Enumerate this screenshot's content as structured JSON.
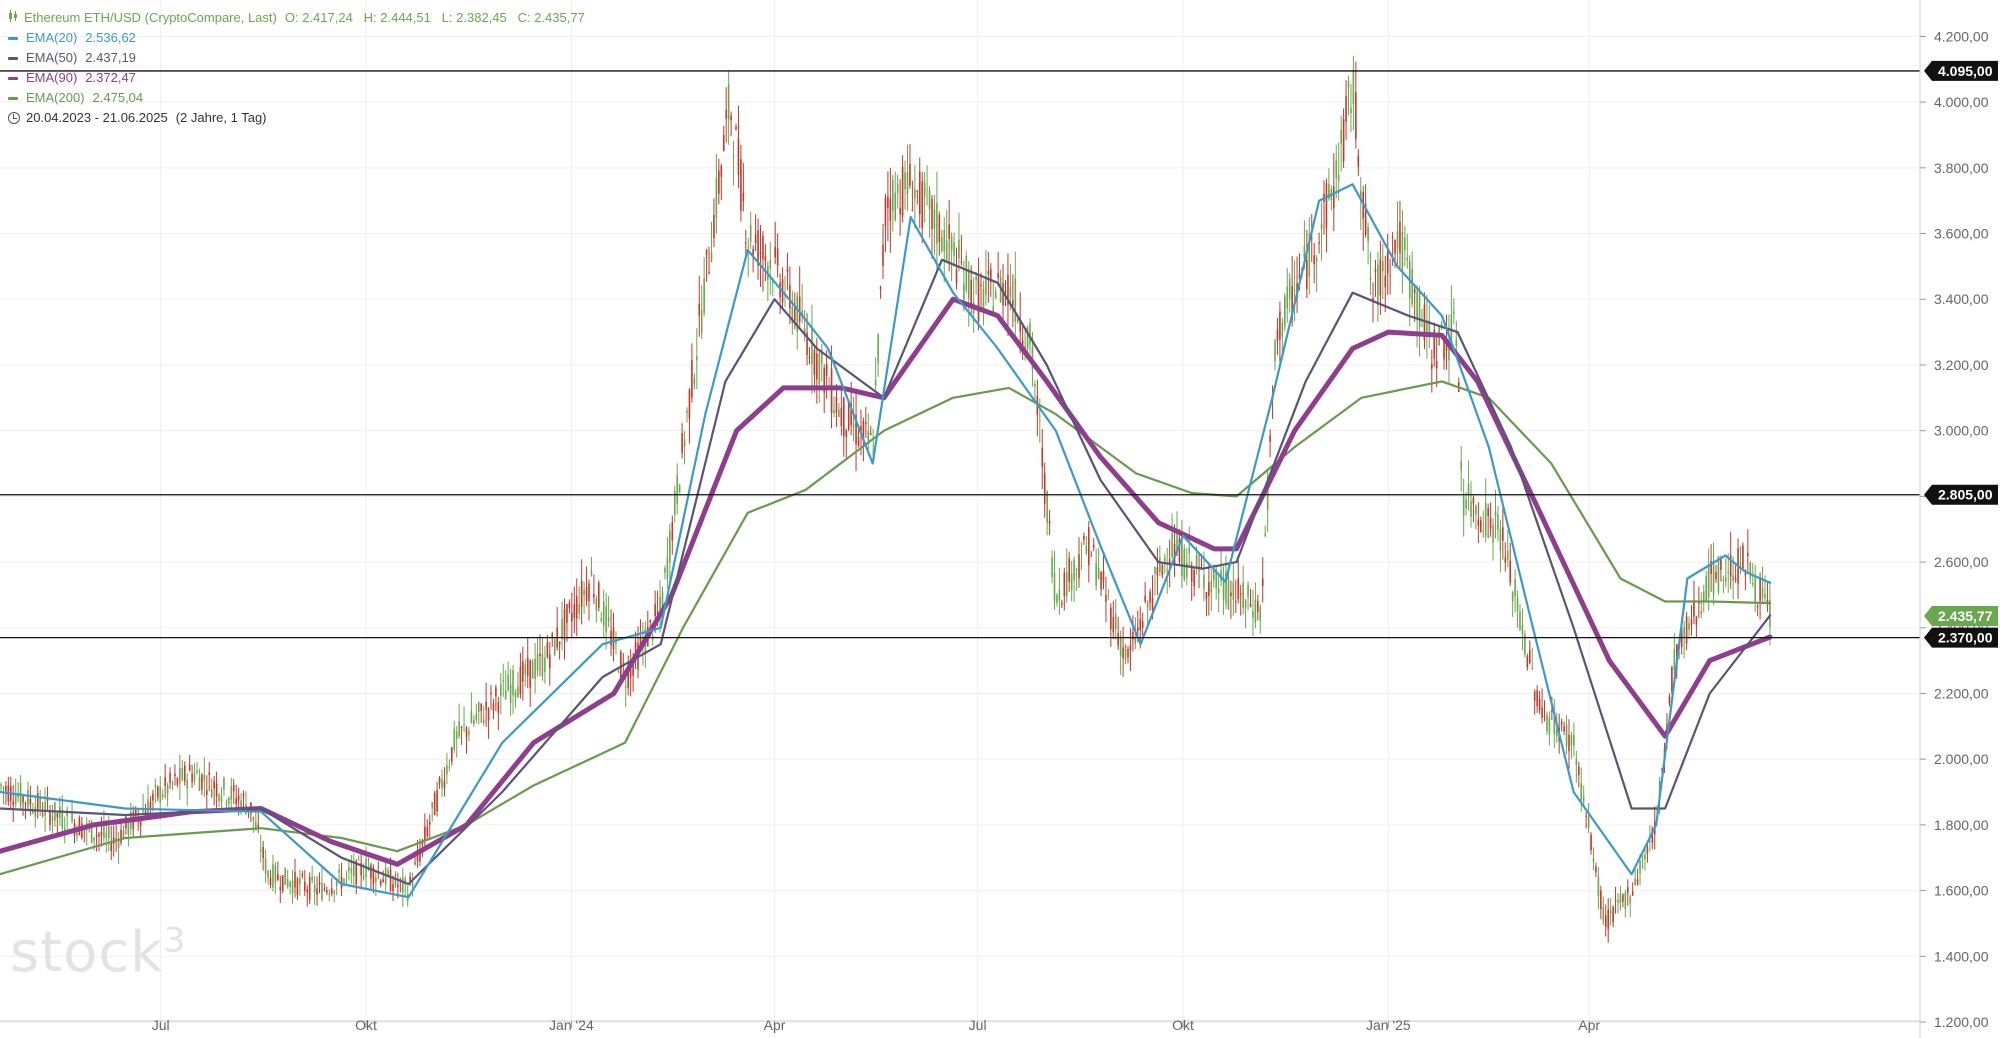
{
  "legend": {
    "instrument": "Ethereum ETH/USD (CryptoCompare, Last)",
    "ohlc": "O: 2.417,24   H: 2.444,51   L: 2.382,45   C: 2.435,77",
    "ema20_label": "EMA(20)",
    "ema20_value": "2.536,62",
    "ema50_label": "EMA(50)",
    "ema50_value": "2.437,19",
    "ema90_label": "EMA(90)",
    "ema90_value": "2.372,47",
    "ema200_label": "EMA(200)",
    "ema200_value": "2.475,04",
    "range": "20.04.2023 - 21.06.2025",
    "period": "(2 Jahre, 1 Tag)"
  },
  "watermark": "stock3",
  "colors": {
    "instrument": "#6aa84f",
    "ema20": "#3d9ac8",
    "ema50": "#5a5478",
    "ema90": "#8e3e8c",
    "ema200": "#6a9a4f",
    "candle_up": "#6aa84f",
    "candle_down": "#c0392b",
    "last_price_tag": "#6aa84f",
    "hline_tag": "#111111"
  },
  "chart_data": {
    "type": "line",
    "title": "Ethereum ETH/USD",
    "ylim": [
      1200,
      4250
    ],
    "y_ticks": [
      "4.200,00",
      "4.000,00",
      "3.800,00",
      "3.600,00",
      "3.400,00",
      "3.200,00",
      "3.000,00",
      "2.800,00",
      "2.600,00",
      "2.400,00",
      "2.200,00",
      "2.000,00",
      "1.800,00",
      "1.600,00",
      "1.400,00",
      "1.200,00"
    ],
    "x_range": [
      "2023-04-20",
      "2025-06-21"
    ],
    "x_ticks": [
      {
        "date": "2023-07-01",
        "label": "Jul"
      },
      {
        "date": "2023-10-01",
        "label": "Okt"
      },
      {
        "date": "2024-01-01",
        "label": "Jan '24"
      },
      {
        "date": "2024-04-01",
        "label": "Apr"
      },
      {
        "date": "2024-07-01",
        "label": "Jul"
      },
      {
        "date": "2024-10-01",
        "label": "Okt"
      },
      {
        "date": "2025-01-01",
        "label": "Jan '25"
      },
      {
        "date": "2025-04-01",
        "label": "Apr"
      }
    ],
    "horizontal_lines": [
      {
        "value": 4095,
        "label": "4.095,00"
      },
      {
        "value": 2805,
        "label": "2.805,00"
      },
      {
        "value": 2370,
        "label": "2.370,00"
      }
    ],
    "last_price": {
      "value": 2435.77,
      "label": "2.435,77"
    },
    "price_series": {
      "name": "Ethereum ETH/USD",
      "x": [
        "2023-04-20",
        "2023-05-15",
        "2023-06-10",
        "2023-07-01",
        "2023-07-15",
        "2023-08-10",
        "2023-08-18",
        "2023-09-10",
        "2023-10-01",
        "2023-10-20",
        "2023-11-10",
        "2023-12-01",
        "2023-12-20",
        "2024-01-10",
        "2024-01-25",
        "2024-02-10",
        "2024-02-28",
        "2024-03-12",
        "2024-03-20",
        "2024-04-01",
        "2024-04-15",
        "2024-05-01",
        "2024-05-15",
        "2024-05-21",
        "2024-06-01",
        "2024-06-15",
        "2024-07-01",
        "2024-07-15",
        "2024-07-25",
        "2024-08-05",
        "2024-08-20",
        "2024-09-06",
        "2024-09-25",
        "2024-10-10",
        "2024-10-25",
        "2024-11-05",
        "2024-11-12",
        "2024-11-25",
        "2024-12-08",
        "2024-12-16",
        "2024-12-25",
        "2025-01-05",
        "2025-01-20",
        "2025-02-01",
        "2025-02-03",
        "2025-02-20",
        "2025-03-10",
        "2025-03-25",
        "2025-04-08",
        "2025-04-20",
        "2025-05-01",
        "2025-05-09",
        "2025-05-25",
        "2025-06-10",
        "2025-06-21"
      ],
      "values": [
        1920,
        1830,
        1750,
        1900,
        1960,
        1860,
        1650,
        1600,
        1670,
        1600,
        2060,
        2200,
        2300,
        2550,
        2250,
        2450,
        3350,
        4000,
        3600,
        3500,
        3300,
        3050,
        2950,
        3700,
        3750,
        3600,
        3400,
        3450,
        3250,
        2500,
        2650,
        2300,
        2650,
        2550,
        2500,
        2450,
        3300,
        3500,
        3750,
        4050,
        3400,
        3600,
        3250,
        3300,
        2800,
        2700,
        2150,
        2050,
        1500,
        1600,
        1800,
        2300,
        2550,
        2600,
        2436
      ]
    },
    "series": [
      {
        "name": "EMA(20)",
        "x": [
          "2023-04-20",
          "2023-06-15",
          "2023-08-15",
          "2023-09-20",
          "2023-10-20",
          "2023-12-01",
          "2024-01-15",
          "2024-02-10",
          "2024-03-01",
          "2024-03-20",
          "2024-04-10",
          "2024-04-25",
          "2024-05-15",
          "2024-06-01",
          "2024-06-20",
          "2024-07-10",
          "2024-08-05",
          "2024-08-25",
          "2024-09-12",
          "2024-10-01",
          "2024-10-20",
          "2024-11-10",
          "2024-12-01",
          "2024-12-16",
          "2025-01-05",
          "2025-01-25",
          "2025-02-15",
          "2025-03-05",
          "2025-03-25",
          "2025-04-20",
          "2025-05-01",
          "2025-05-15",
          "2025-06-01",
          "2025-06-10",
          "2025-06-21"
        ],
        "values": [
          1900,
          1850,
          1840,
          1620,
          1580,
          2050,
          2350,
          2400,
          3050,
          3550,
          3380,
          3250,
          2900,
          3650,
          3420,
          3250,
          3000,
          2650,
          2350,
          2680,
          2540,
          3100,
          3700,
          3750,
          3500,
          3350,
          2950,
          2450,
          1900,
          1650,
          1800,
          2550,
          2620,
          2570,
          2537
        ]
      },
      {
        "name": "EMA(50)",
        "x": [
          "2023-04-20",
          "2023-06-15",
          "2023-08-15",
          "2023-09-20",
          "2023-10-20",
          "2023-12-01",
          "2024-01-15",
          "2024-02-10",
          "2024-03-10",
          "2024-04-01",
          "2024-04-20",
          "2024-05-20",
          "2024-06-15",
          "2024-07-10",
          "2024-08-01",
          "2024-08-25",
          "2024-09-20",
          "2024-10-10",
          "2024-10-25",
          "2024-11-25",
          "2024-12-16",
          "2025-01-10",
          "2025-02-01",
          "2025-02-25",
          "2025-03-25",
          "2025-04-20",
          "2025-05-05",
          "2025-05-25",
          "2025-06-21"
        ],
        "values": [
          1850,
          1830,
          1850,
          1700,
          1620,
          1900,
          2250,
          2350,
          3150,
          3400,
          3250,
          3100,
          3520,
          3450,
          3200,
          2850,
          2600,
          2580,
          2600,
          3150,
          3420,
          3350,
          3300,
          2950,
          2400,
          1850,
          1850,
          2200,
          2437
        ]
      },
      {
        "name": "EMA(90)",
        "x": [
          "2023-04-20",
          "2023-06-01",
          "2023-07-15",
          "2023-08-15",
          "2023-09-15",
          "2023-10-15",
          "2023-11-15",
          "2023-12-15",
          "2024-01-20",
          "2024-02-15",
          "2024-03-15",
          "2024-04-05",
          "2024-05-01",
          "2024-05-20",
          "2024-06-20",
          "2024-07-10",
          "2024-08-01",
          "2024-08-25",
          "2024-09-20",
          "2024-10-15",
          "2024-10-25",
          "2024-11-20",
          "2024-12-16",
          "2025-01-01",
          "2025-01-25",
          "2025-02-10",
          "2025-03-10",
          "2025-04-10",
          "2025-05-05",
          "2025-05-25",
          "2025-06-21"
        ],
        "values": [
          1720,
          1800,
          1840,
          1850,
          1750,
          1680,
          1800,
          2050,
          2200,
          2500,
          3000,
          3130,
          3130,
          3100,
          3400,
          3350,
          3150,
          2920,
          2720,
          2640,
          2640,
          3000,
          3250,
          3300,
          3290,
          3150,
          2750,
          2300,
          2070,
          2300,
          2372
        ]
      },
      {
        "name": "EMA(200)",
        "x": [
          "2023-04-20",
          "2023-06-15",
          "2023-08-15",
          "2023-09-20",
          "2023-10-15",
          "2023-11-15",
          "2023-12-15",
          "2024-01-25",
          "2024-02-20",
          "2024-03-20",
          "2024-04-15",
          "2024-05-20",
          "2024-06-20",
          "2024-07-15",
          "2024-08-05",
          "2024-09-10",
          "2024-10-05",
          "2024-10-25",
          "2024-11-20",
          "2024-12-20",
          "2025-01-25",
          "2025-02-15",
          "2025-03-15",
          "2025-04-15",
          "2025-05-05",
          "2025-05-25",
          "2025-06-21"
        ],
        "values": [
          1650,
          1760,
          1790,
          1760,
          1720,
          1800,
          1920,
          2050,
          2400,
          2750,
          2820,
          3000,
          3100,
          3130,
          3050,
          2870,
          2810,
          2800,
          2950,
          3100,
          3150,
          3100,
          2900,
          2550,
          2480,
          2480,
          2475
        ]
      }
    ]
  }
}
